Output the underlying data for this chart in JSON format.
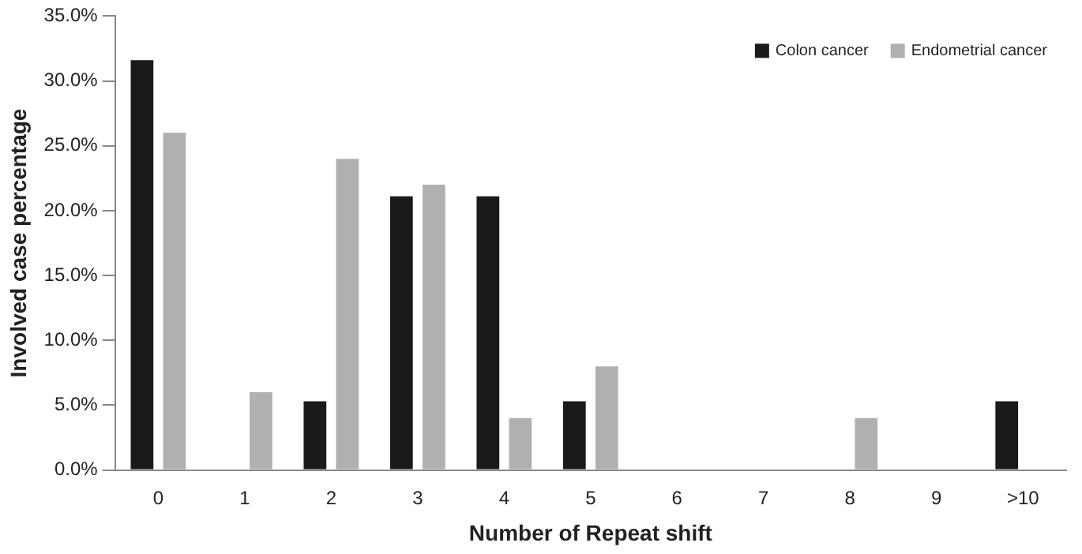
{
  "chart_data": {
    "type": "bar",
    "xlabel": "Number of Repeat shift",
    "ylabel": "Involved case percentage",
    "categories": [
      "0",
      "1",
      "2",
      "3",
      "4",
      "5",
      "6",
      "7",
      "8",
      "9",
      ">10"
    ],
    "series": [
      {
        "name": "Colon cancer",
        "color": "#1a1a1a",
        "values": [
          31.6,
          0,
          5.3,
          21.1,
          21.1,
          5.3,
          0,
          0,
          0,
          0,
          5.3
        ]
      },
      {
        "name": "Endometrial cancer",
        "color": "#b0b0b0",
        "values": [
          26,
          6,
          24,
          22,
          4,
          8,
          0,
          0,
          4,
          0,
          0
        ]
      }
    ],
    "ylim": [
      0,
      35
    ],
    "yticks": [
      {
        "value": 0,
        "label": "0.0%"
      },
      {
        "value": 5,
        "label": "5.0%"
      },
      {
        "value": 10,
        "label": "10.0%"
      },
      {
        "value": 15,
        "label": "15.0%"
      },
      {
        "value": 20,
        "label": "20.0%"
      },
      {
        "value": 25,
        "label": "25.0%"
      },
      {
        "value": 30,
        "label": "30.0%"
      },
      {
        "value": 35,
        "label": "35.0%"
      }
    ],
    "grid": false,
    "legend": "top right"
  }
}
